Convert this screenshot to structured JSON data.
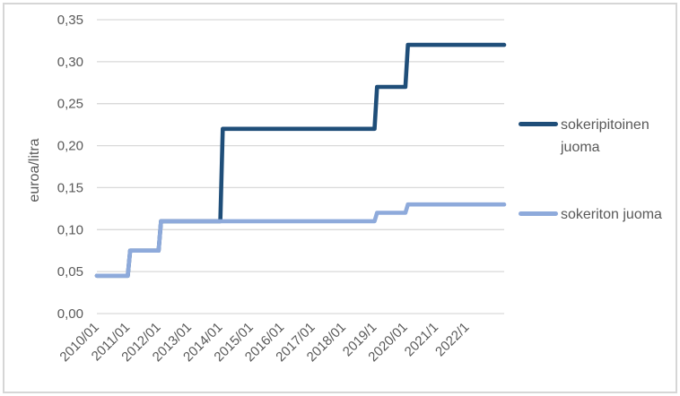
{
  "figure": {
    "background": "#FFFFFF",
    "border_color": "#D6D6D6"
  },
  "y_axis": {
    "title": "euroa/litra"
  },
  "legend": {
    "items": [
      {
        "label": "sokeripitoinen juoma"
      },
      {
        "label": "sokeriton juoma"
      }
    ]
  },
  "chart_data": {
    "type": "line",
    "line_style": "step",
    "title": "",
    "xlabel": "",
    "ylabel": "euroa/litra",
    "ylim": [
      0,
      0.35
    ],
    "xlim": [
      2010,
      2023.2
    ],
    "grid": true,
    "legend_position": "right",
    "decimal_separator": ",",
    "colors": {
      "grid": "#D9D9D9",
      "text": "#595959",
      "border": "#D6D6D6",
      "dark_series": "#1F4E79",
      "light_series": "#8EAADB"
    },
    "yticks": [
      {
        "value": 0.0,
        "label": "0,00"
      },
      {
        "value": 0.05,
        "label": "0,05"
      },
      {
        "value": 0.1,
        "label": "0,10"
      },
      {
        "value": 0.15,
        "label": "0,15"
      },
      {
        "value": 0.2,
        "label": "0,20"
      },
      {
        "value": 0.25,
        "label": "0,25"
      },
      {
        "value": 0.3,
        "label": "0,30"
      },
      {
        "value": 0.35,
        "label": "0,35"
      }
    ],
    "xticks": [
      {
        "value": 2010,
        "label": "2010/01"
      },
      {
        "value": 2011,
        "label": "2011/01"
      },
      {
        "value": 2012,
        "label": "2012/01"
      },
      {
        "value": 2013,
        "label": "2013/01"
      },
      {
        "value": 2014,
        "label": "2014/01"
      },
      {
        "value": 2015,
        "label": "2015/01"
      },
      {
        "value": 2016,
        "label": "2016/01"
      },
      {
        "value": 2017,
        "label": "2017/01"
      },
      {
        "value": 2018,
        "label": "2018/01"
      },
      {
        "value": 2019,
        "label": "2019/1"
      },
      {
        "value": 2020,
        "label": "2020/01"
      },
      {
        "value": 2021,
        "label": "2021/1"
      },
      {
        "value": 2022,
        "label": "2022/1"
      }
    ],
    "series": [
      {
        "name": "sokeripitoinen juoma",
        "color": "#1F4E79",
        "points": [
          [
            2010,
            0.045
          ],
          [
            2011,
            0.045
          ],
          [
            2011.08,
            0.075
          ],
          [
            2012,
            0.075
          ],
          [
            2012.08,
            0.11
          ],
          [
            2014,
            0.11
          ],
          [
            2014.08,
            0.22
          ],
          [
            2019,
            0.22
          ],
          [
            2019.08,
            0.27
          ],
          [
            2020,
            0.27
          ],
          [
            2020.08,
            0.32
          ],
          [
            2023.2,
            0.32
          ]
        ]
      },
      {
        "name": "sokeriton juoma",
        "color": "#8EAADB",
        "points": [
          [
            2010,
            0.045
          ],
          [
            2011,
            0.045
          ],
          [
            2011.08,
            0.075
          ],
          [
            2012,
            0.075
          ],
          [
            2012.08,
            0.11
          ],
          [
            2019,
            0.11
          ],
          [
            2019.08,
            0.12
          ],
          [
            2020,
            0.12
          ],
          [
            2020.08,
            0.13
          ],
          [
            2023.2,
            0.13
          ]
        ]
      }
    ]
  }
}
